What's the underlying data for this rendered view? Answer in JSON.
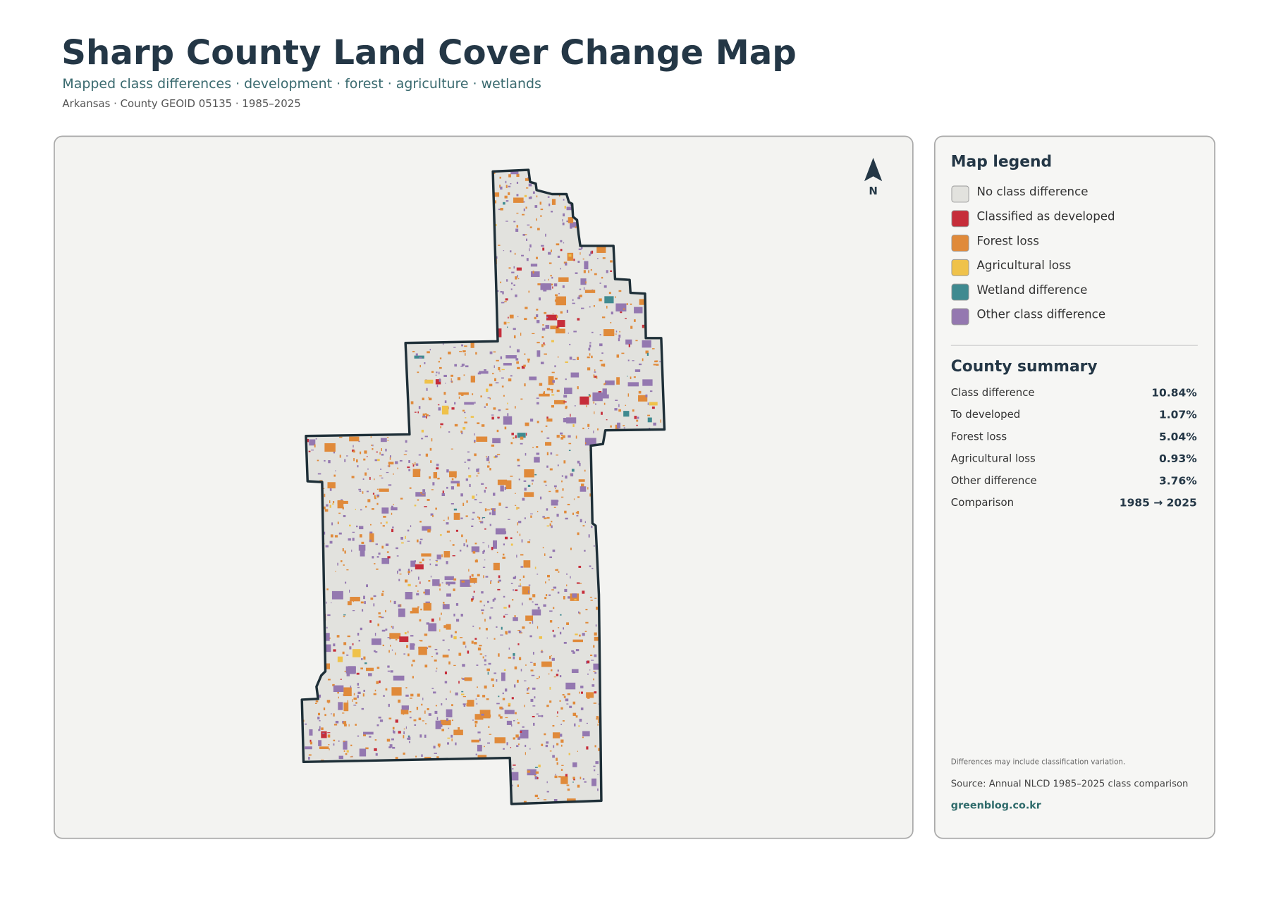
{
  "header": {
    "title": "Sharp County Land Cover Change Map",
    "subtitle": "Mapped class differences · development · forest · agriculture · wetlands",
    "meta": "Arkansas · County GEOID 05135 · 1985–2025"
  },
  "map": {
    "north": "N"
  },
  "legend": {
    "title": "Map legend",
    "items": [
      {
        "label": "No class difference",
        "color": "#e2e2de"
      },
      {
        "label": "Classified as developed",
        "color": "#c62d3a"
      },
      {
        "label": "Forest loss",
        "color": "#e08a3a"
      },
      {
        "label": "Agricultural loss",
        "color": "#efc24a"
      },
      {
        "label": "Wetland difference",
        "color": "#3f8a90"
      },
      {
        "label": "Other class difference",
        "color": "#9478b0"
      }
    ]
  },
  "summary": {
    "title": "County summary",
    "rows": [
      {
        "label": "Class difference",
        "value": "10.84%"
      },
      {
        "label": "To developed",
        "value": "1.07%"
      },
      {
        "label": "Forest loss",
        "value": "5.04%"
      },
      {
        "label": "Agricultural loss",
        "value": "0.93%"
      },
      {
        "label": "Other difference",
        "value": "3.76%"
      },
      {
        "label": "Comparison",
        "value": "1985 → 2025"
      }
    ]
  },
  "footer": {
    "note": "Differences may include classification variation.",
    "source": "Source: Annual NLCD 1985–2025 class comparison",
    "site": "greenblog.co.kr"
  }
}
